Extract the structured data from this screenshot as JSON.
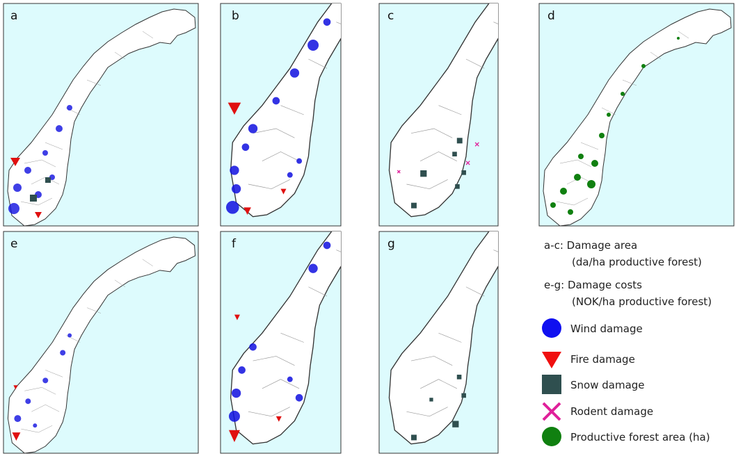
{
  "panels": [
    {
      "label": "a"
    },
    {
      "label": "b"
    },
    {
      "label": "c"
    },
    {
      "label": "d"
    },
    {
      "label": "e"
    },
    {
      "label": "f"
    },
    {
      "label": "g"
    }
  ],
  "legend": {
    "area_note": {
      "line1": "a-c: Damage area",
      "line2": "(da/ha productive forest)"
    },
    "cost_note": {
      "line1": "e-g: Damage costs",
      "line2": "(NOK/ha productive forest)"
    },
    "items": [
      "Wind damage",
      "Fire damage",
      "Snow damage",
      "Rodent damage",
      "Productive forest area (ha)"
    ]
  }
}
